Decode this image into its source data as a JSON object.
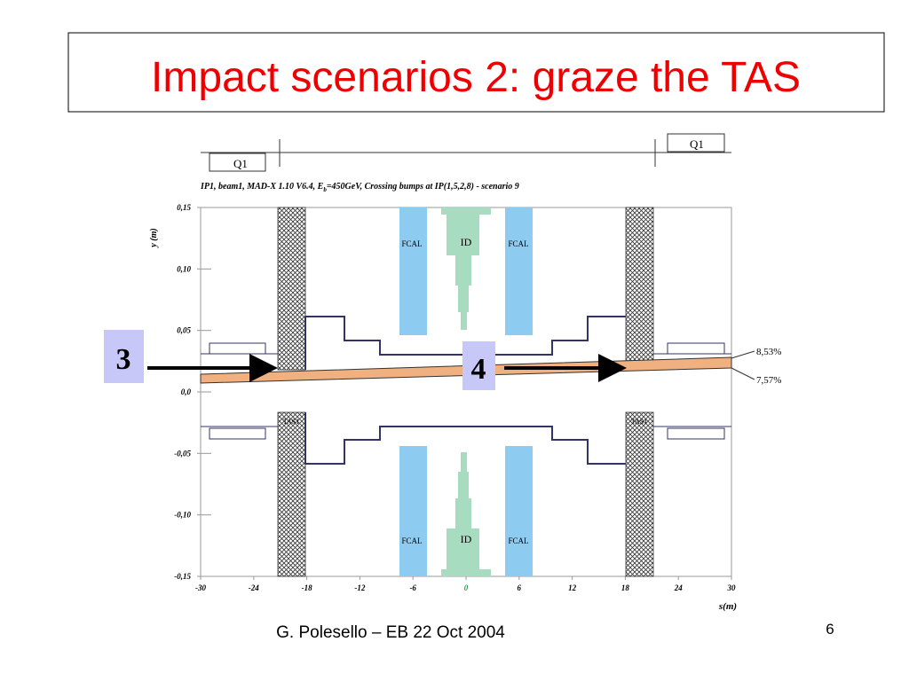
{
  "slide": {
    "title": "Impact scenarios 2: graze the TAS",
    "footer": "G. Polesello – EB 22 Oct 2004",
    "page_number": "6"
  },
  "figure": {
    "magnets": [
      "Q1",
      "Q1"
    ],
    "caption": {
      "before": "IP1, beam1, MAD-X 1.10 V6.4, E",
      "sub": "b",
      "after": "=450GeV, Crossing bumps at IP(1,5,2,8) - scenario 9"
    },
    "y_label": "y (m)",
    "x_label": "s(m)",
    "yticks": [
      "0,15",
      "0,10",
      "0,05",
      "0,0",
      "-0,05",
      "-0,10",
      "-0,15"
    ],
    "xticks": [
      "-30",
      "-24",
      "-18",
      "-12",
      "-6",
      "0",
      "6",
      "12",
      "18",
      "24",
      "30"
    ],
    "fcal": "FCAL",
    "id": "ID",
    "tas": "TAS1",
    "beam_labels": [
      "8,53%",
      "7,57%"
    ],
    "markers": [
      "3",
      "4"
    ]
  }
}
